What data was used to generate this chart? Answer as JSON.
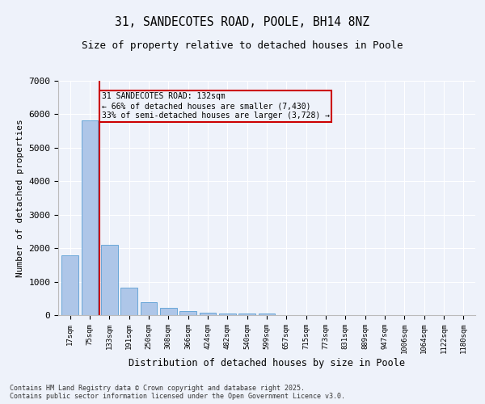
{
  "title": "31, SANDECOTES ROAD, POOLE, BH14 8NZ",
  "subtitle": "Size of property relative to detached houses in Poole",
  "xlabel": "Distribution of detached houses by size in Poole",
  "ylabel": "Number of detached properties",
  "categories": [
    "17sqm",
    "75sqm",
    "133sqm",
    "191sqm",
    "250sqm",
    "308sqm",
    "366sqm",
    "424sqm",
    "482sqm",
    "540sqm",
    "599sqm",
    "657sqm",
    "715sqm",
    "773sqm",
    "831sqm",
    "889sqm",
    "947sqm",
    "1006sqm",
    "1064sqm",
    "1122sqm",
    "1180sqm"
  ],
  "values": [
    1780,
    5820,
    2090,
    820,
    380,
    210,
    110,
    80,
    60,
    50,
    50,
    0,
    0,
    0,
    0,
    0,
    0,
    0,
    0,
    0,
    0
  ],
  "bar_color": "#aec6e8",
  "bar_edge_color": "#5a9fd4",
  "highlight_bar_index": 2,
  "highlight_line_color": "#cc0000",
  "annotation_text": "31 SANDECOTES ROAD: 132sqm\n← 66% of detached houses are smaller (7,430)\n33% of semi-detached houses are larger (3,728) →",
  "annotation_box_color": "#cc0000",
  "background_color": "#eef2fa",
  "grid_color": "#ffffff",
  "ylim": [
    0,
    7000
  ],
  "yticks": [
    0,
    1000,
    2000,
    3000,
    4000,
    5000,
    6000,
    7000
  ],
  "footer_line1": "Contains HM Land Registry data © Crown copyright and database right 2025.",
  "footer_line2": "Contains public sector information licensed under the Open Government Licence v3.0."
}
